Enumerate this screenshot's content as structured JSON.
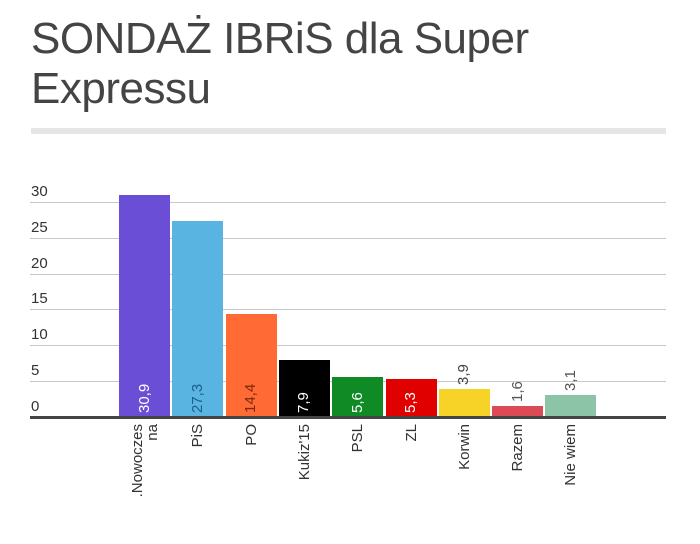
{
  "header": {
    "title": "SONDAŻ IBRiS dla Super Expressu"
  },
  "chart_data": {
    "type": "bar",
    "title": "SONDAŻ IBRiS dla Super Expressu",
    "xlabel": "",
    "ylabel": "",
    "ylim": [
      0,
      30
    ],
    "yticks": [
      "0",
      "5",
      "10",
      "15",
      "20",
      "25",
      "30"
    ],
    "grid": true,
    "legend": "none",
    "categories": [
      "Nowoczesna",
      "PiS",
      "PO",
      "Kukiz'15",
      "PSL",
      "ZL",
      "Korwin",
      "Razem",
      "Nie wiem"
    ],
    "category_labels_displayed": [
      ".Nowocześna",
      "PiS",
      "PO",
      "Kukiz'15",
      "PSL",
      "ZL",
      "Korwin",
      "Razem",
      "Nie wiem"
    ],
    "values": [
      30.9,
      27.3,
      14.4,
      7.9,
      5.6,
      5.3,
      3.9,
      1.6,
      3.1
    ],
    "value_labels": [
      "30,9",
      "27,3",
      "14,4",
      "7,9",
      "5,6",
      "5,3",
      "3,9",
      "1,6",
      "3,1"
    ],
    "colors": [
      "#6a4fd6",
      "#5ab4e2",
      "#ff6a35",
      "#000000",
      "#0f8a24",
      "#e00000",
      "#f6d326",
      "#dc4a55",
      "#8cc4a8"
    ],
    "label_colors": [
      "#ffffff",
      "#1a5f8a",
      "#7a2a0a",
      "#ffffff",
      "#ffffff",
      "#ffffff",
      "#444444",
      "#555555",
      "#555555"
    ]
  },
  "x_axis": {
    "line1": [
      ".Nowoczes",
      "PiS",
      "PO",
      "Kukiz'15",
      "PSL",
      "ZL",
      "Korwin",
      "Razem",
      "Nie wiem"
    ],
    "line2": [
      "na",
      "",
      "",
      "",
      "",
      "",
      "",
      "",
      ""
    ]
  }
}
